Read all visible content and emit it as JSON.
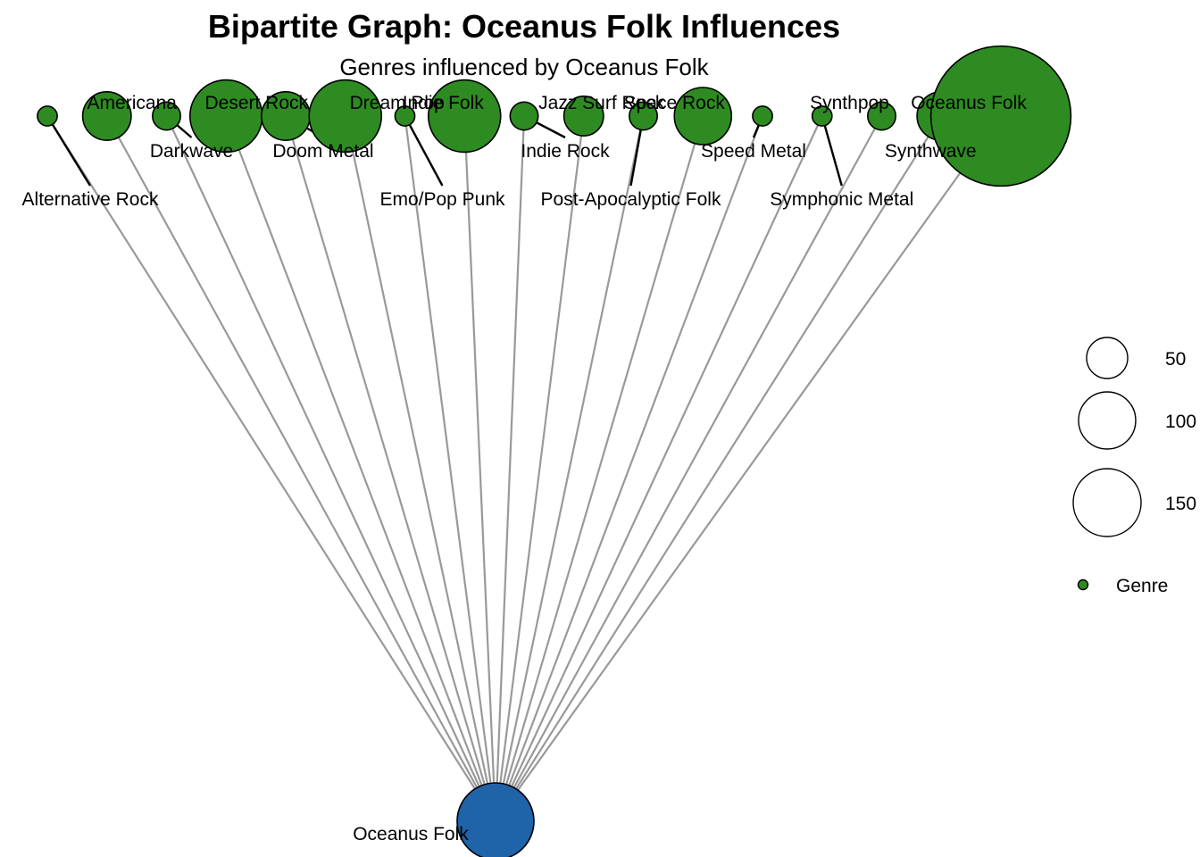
{
  "title": "Bipartite Graph: Oceanus Folk Influences",
  "subtitle": "Genres influenced by Oceanus Folk",
  "colors": {
    "genre": "#2e8b22",
    "source": "#1f63a8",
    "edge": "#999999"
  },
  "source": {
    "name": "Oceanus Folk",
    "size": 150
  },
  "genres": [
    {
      "name": "Alternative Rock",
      "size": 3
    },
    {
      "name": "Americana",
      "size": 18
    },
    {
      "name": "Darkwave",
      "size": 6
    },
    {
      "name": "Desert Rock",
      "size": 40
    },
    {
      "name": "Doom Metal",
      "size": 18
    },
    {
      "name": "Dream Pop",
      "size": 40
    },
    {
      "name": "Emo/Pop Punk",
      "size": 3
    },
    {
      "name": "Indie Folk",
      "size": 40
    },
    {
      "name": "Indie Rock",
      "size": 6
    },
    {
      "name": "Jazz Surf Rock",
      "size": 12
    },
    {
      "name": "Post-Apocalyptic Folk",
      "size": 6
    },
    {
      "name": "Space Rock",
      "size": 25
    },
    {
      "name": "Speed Metal",
      "size": 3
    },
    {
      "name": "Symphonic Metal",
      "size": 3
    },
    {
      "name": "Synthpop",
      "size": 6
    },
    {
      "name": "Synthwave",
      "size": 18
    },
    {
      "name": "Oceanus Folk",
      "size": 150
    }
  ],
  "legend": {
    "size_entries": [
      "50",
      "100",
      "150"
    ],
    "type_label": "Genre"
  }
}
